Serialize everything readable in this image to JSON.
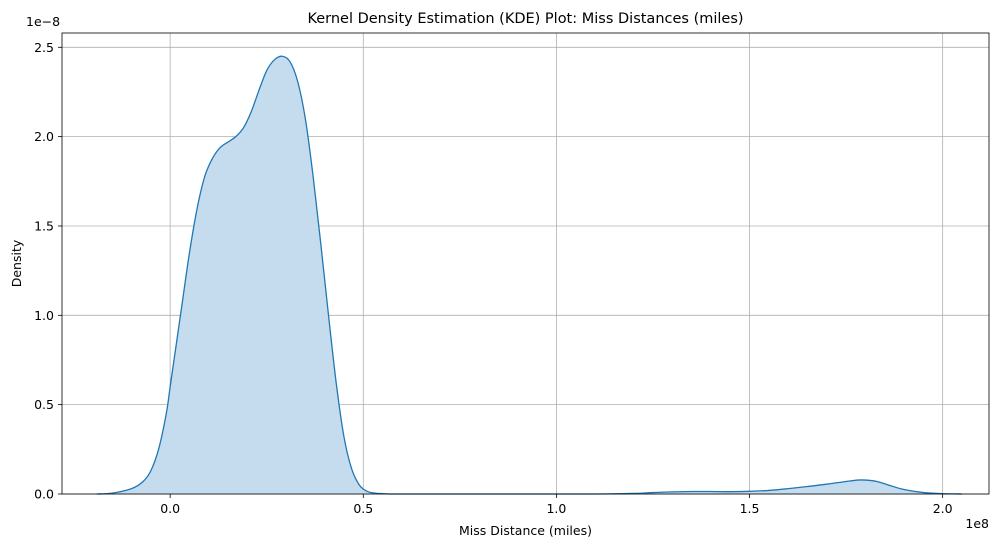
{
  "chart_data": {
    "type": "area",
    "title": "Kernel Density Estimation (KDE) Plot: Miss Distances (miles)",
    "xlabel": "Miss Distance (miles)",
    "ylabel": "Density",
    "x_offset_text": "1e8",
    "y_offset_text": "1e−8",
    "xlim": [
      -0.28,
      2.12
    ],
    "ylim": [
      0,
      2.58
    ],
    "x_ticks": [
      0.0,
      0.5,
      1.0,
      1.5,
      2.0
    ],
    "x_tick_labels": [
      "0.0",
      "0.5",
      "1.0",
      "1.5",
      "2.0"
    ],
    "y_ticks": [
      0.0,
      0.5,
      1.0,
      1.5,
      2.0,
      2.5
    ],
    "y_tick_labels": [
      "0.0",
      "0.5",
      "1.0",
      "1.5",
      "2.0",
      "2.5"
    ],
    "grid": true,
    "colors": {
      "line": "#1f77b4",
      "fill": "#c5dcee",
      "grid": "#b0b0b0"
    },
    "series": [
      {
        "x": [
          -0.19,
          -0.15,
          -0.1,
          -0.07,
          -0.05,
          -0.03,
          -0.01,
          0.0,
          0.01,
          0.03,
          0.05,
          0.07,
          0.09,
          0.11,
          0.13,
          0.15,
          0.17,
          0.19,
          0.21,
          0.23,
          0.25,
          0.27,
          0.29,
          0.31,
          0.33,
          0.35,
          0.37,
          0.39,
          0.41,
          0.43,
          0.45,
          0.47,
          0.49,
          0.51,
          0.53,
          0.55,
          0.57,
          0.6,
          0.65,
          0.7,
          0.8,
          0.9,
          1.0,
          1.1,
          1.2,
          1.25,
          1.3,
          1.35,
          1.4,
          1.45,
          1.5,
          1.55,
          1.6,
          1.65,
          1.7,
          1.75,
          1.78,
          1.8,
          1.83,
          1.86,
          1.9,
          1.95,
          2.0,
          2.05
        ],
        "y": [
          0.0,
          0.005,
          0.03,
          0.07,
          0.13,
          0.25,
          0.45,
          0.6,
          0.75,
          1.05,
          1.35,
          1.6,
          1.78,
          1.88,
          1.94,
          1.97,
          2.0,
          2.05,
          2.14,
          2.26,
          2.37,
          2.43,
          2.45,
          2.42,
          2.31,
          2.1,
          1.78,
          1.4,
          1.0,
          0.62,
          0.32,
          0.14,
          0.05,
          0.015,
          0.005,
          0.002,
          0.0,
          0.0,
          0.0,
          0.0,
          0.0,
          0.0,
          0.0,
          0.0,
          0.003,
          0.008,
          0.012,
          0.014,
          0.014,
          0.013,
          0.015,
          0.02,
          0.03,
          0.042,
          0.055,
          0.07,
          0.078,
          0.078,
          0.07,
          0.05,
          0.025,
          0.008,
          0.002,
          0.0
        ]
      }
    ]
  }
}
